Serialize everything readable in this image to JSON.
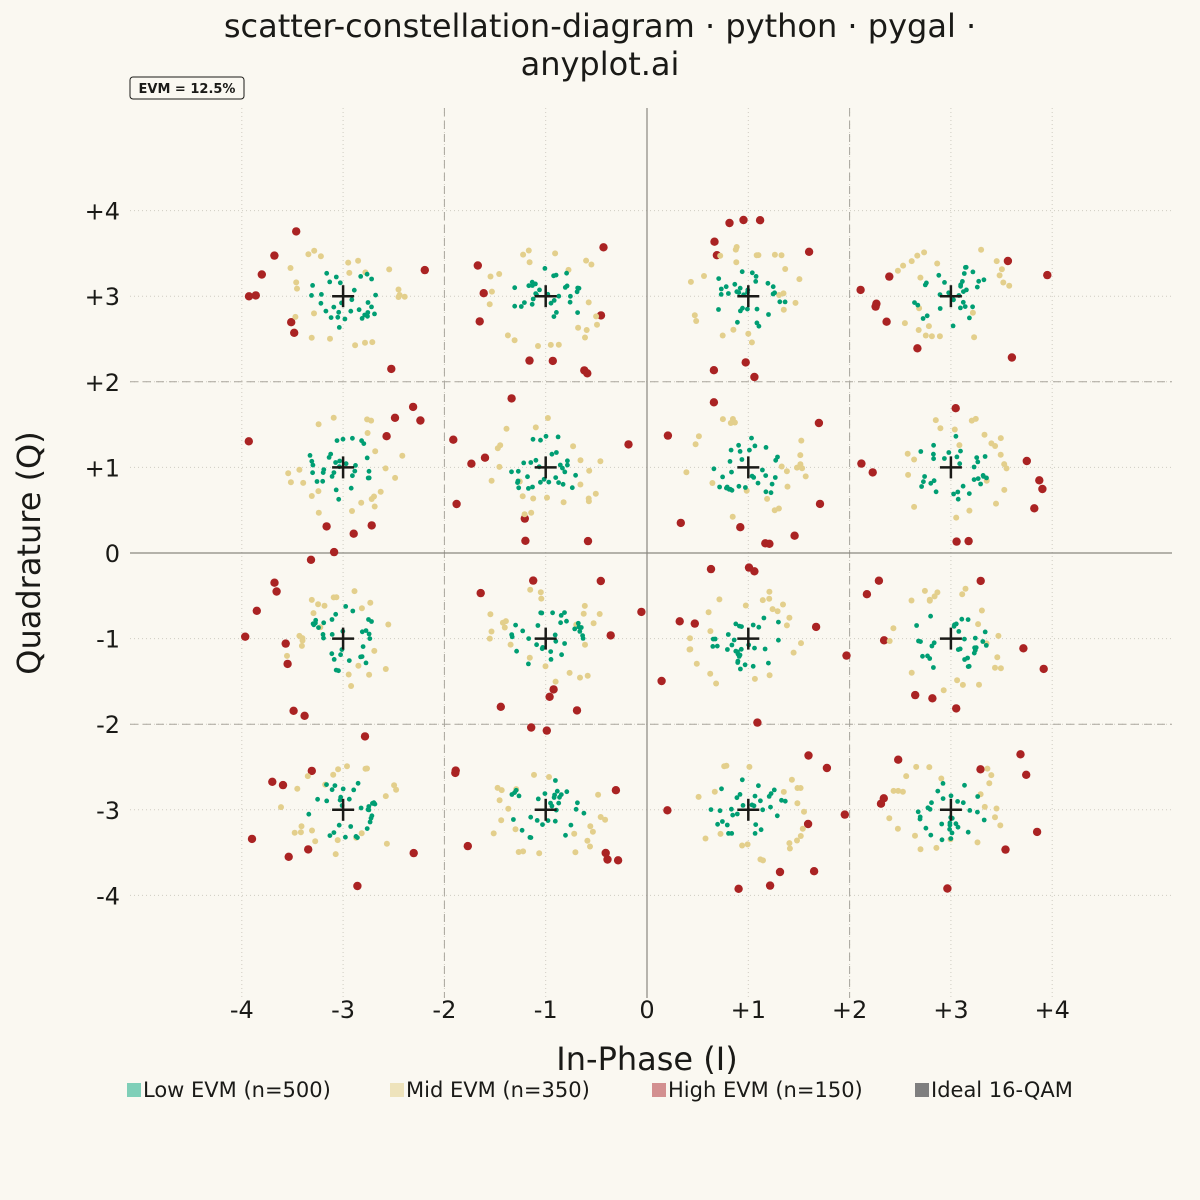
{
  "chart_data": {
    "type": "scatter",
    "title_lines": [
      "scatter-constellation-diagram · python · pygal ·",
      "anyplot.ai"
    ],
    "xlabel": "In-Phase (I)",
    "ylabel": "Quadrature (Q)",
    "xlim": [
      -5,
      5
    ],
    "ylim": [
      -5,
      5
    ],
    "x_ticks": [
      {
        "value": -4,
        "label": "-4"
      },
      {
        "value": -3,
        "label": "-3"
      },
      {
        "value": -2,
        "label": "-2"
      },
      {
        "value": -1,
        "label": "-1"
      },
      {
        "value": 0,
        "label": "0"
      },
      {
        "value": 1,
        "label": "+1"
      },
      {
        "value": 2,
        "label": "+2"
      },
      {
        "value": 3,
        "label": "+3"
      },
      {
        "value": 4,
        "label": "+4"
      }
    ],
    "y_ticks": [
      {
        "value": 4,
        "label": "+4"
      },
      {
        "value": 3,
        "label": "+3"
      },
      {
        "value": 2,
        "label": "+2"
      },
      {
        "value": 1,
        "label": "+1"
      },
      {
        "value": 0,
        "label": "0"
      },
      {
        "value": -1,
        "label": "-1"
      },
      {
        "value": -2,
        "label": "-2"
      },
      {
        "value": -3,
        "label": "-3"
      },
      {
        "value": -4,
        "label": "-4"
      }
    ],
    "decision_boundaries": [
      -2,
      0,
      2
    ],
    "annotation": "EVM = 12.5%",
    "grid": true,
    "legend_position": "bottom",
    "series": [
      {
        "name": "Low EVM (n=500)",
        "color": "#009E73",
        "legend_color": "#7FCFB8",
        "count": 500,
        "radius_range": [
          0,
          0.38
        ]
      },
      {
        "name": "Mid EVM (n=350)",
        "color": "#E3CF8C",
        "legend_color": "#EEE3BB",
        "count": 350,
        "radius_range": [
          0.25,
          0.62
        ]
      },
      {
        "name": "High EVM (n=150)",
        "color": "#AA2323",
        "legend_color": "#D39090",
        "count": 150,
        "radius_range": [
          0.45,
          1.0
        ]
      },
      {
        "name": "Ideal 16-QAM",
        "color": "#1A1A17",
        "legend_color": "#7F7F7F",
        "points": [
          [
            -3,
            3
          ],
          [
            -1,
            3
          ],
          [
            1,
            3
          ],
          [
            3,
            3
          ],
          [
            -3,
            1
          ],
          [
            -1,
            1
          ],
          [
            1,
            1
          ],
          [
            3,
            1
          ],
          [
            -3,
            -1
          ],
          [
            -1,
            -1
          ],
          [
            1,
            -1
          ],
          [
            3,
            -1
          ],
          [
            -3,
            -3
          ],
          [
            -1,
            -3
          ],
          [
            1,
            -3
          ],
          [
            3,
            -3
          ]
        ]
      }
    ]
  }
}
